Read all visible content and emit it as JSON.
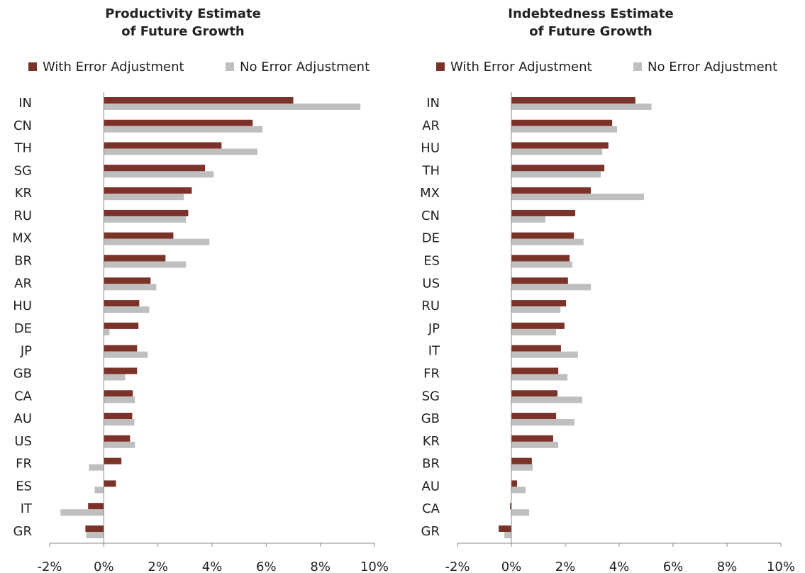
{
  "chart_data": [
    {
      "type": "bar",
      "orientation": "horizontal",
      "title": [
        "Productivity Estimate",
        "of Future Growth"
      ],
      "categories": [
        "IN",
        "CN",
        "TH",
        "SG",
        "KR",
        "RU",
        "MX",
        "BR",
        "AR",
        "HU",
        "DE",
        "JP",
        "GB",
        "CA",
        "AU",
        "US",
        "FR",
        "ES",
        "IT",
        "GR"
      ],
      "series": [
        {
          "name": "With Error Adjustment",
          "color": "#7b3228",
          "values": [
            7.0,
            5.5,
            4.35,
            3.74,
            3.25,
            3.12,
            2.57,
            2.28,
            1.73,
            1.31,
            1.28,
            1.23,
            1.23,
            1.07,
            1.05,
            0.97,
            0.65,
            0.45,
            -0.58,
            -0.68
          ]
        },
        {
          "name": "No Error Adjustment",
          "color": "#bfbfbf",
          "values": [
            9.48,
            5.86,
            5.68,
            4.06,
            2.96,
            3.04,
            3.9,
            3.04,
            1.94,
            1.68,
            0.21,
            1.62,
            0.79,
            1.15,
            1.13,
            1.15,
            -0.55,
            -0.34,
            -1.6,
            -0.65
          ]
        }
      ],
      "xlim": [
        -2,
        10
      ],
      "xticks": [
        {
          "value": -2,
          "label": "-2%"
        },
        {
          "value": 0,
          "label": "0%"
        },
        {
          "value": 2,
          "label": "2%"
        },
        {
          "value": 4,
          "label": "4%"
        },
        {
          "value": 6,
          "label": "6%"
        },
        {
          "value": 8,
          "label": "8%"
        },
        {
          "value": 10,
          "label": "10%"
        }
      ]
    },
    {
      "type": "bar",
      "orientation": "horizontal",
      "title": [
        "Indebtedness Estimate",
        "of Future Growth"
      ],
      "categories": [
        "IN",
        "AR",
        "HU",
        "TH",
        "MX",
        "CN",
        "DE",
        "ES",
        "US",
        "RU",
        "JP",
        "IT",
        "FR",
        "SG",
        "GB",
        "KR",
        "BR",
        "AU",
        "CA",
        "GR"
      ],
      "series": [
        {
          "name": "With Error Adjustment",
          "color": "#7b3228",
          "values": [
            4.6,
            3.74,
            3.6,
            3.45,
            2.95,
            2.37,
            2.32,
            2.16,
            2.1,
            2.03,
            1.97,
            1.84,
            1.74,
            1.71,
            1.66,
            1.55,
            0.76,
            0.21,
            -0.05,
            -0.47
          ]
        },
        {
          "name": "No Error Adjustment",
          "color": "#bfbfbf",
          "values": [
            5.2,
            3.92,
            3.37,
            3.32,
            4.92,
            1.26,
            2.68,
            2.26,
            2.95,
            1.82,
            1.66,
            2.47,
            2.08,
            2.63,
            2.34,
            1.74,
            0.79,
            0.53,
            0.66,
            -0.26
          ]
        }
      ],
      "xlim": [
        -2,
        10
      ],
      "xticks": [
        {
          "value": -2,
          "label": "-2%"
        },
        {
          "value": 0,
          "label": "0%"
        },
        {
          "value": 2,
          "label": "2%"
        },
        {
          "value": 4,
          "label": "4%"
        },
        {
          "value": 6,
          "label": "6%"
        },
        {
          "value": 8,
          "label": "8%"
        },
        {
          "value": 10,
          "label": "10%"
        }
      ]
    }
  ]
}
